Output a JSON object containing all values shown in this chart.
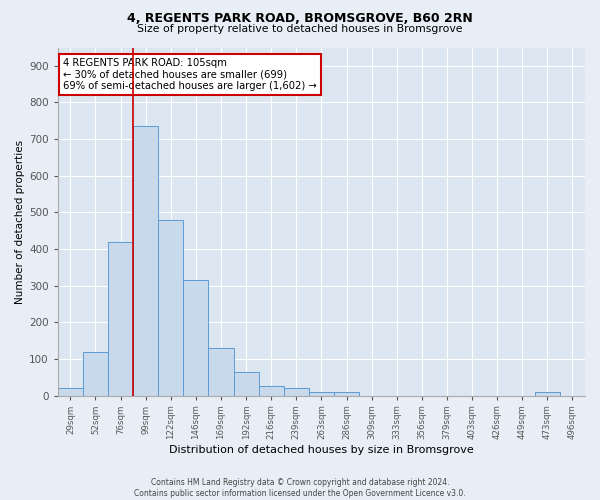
{
  "title1": "4, REGENTS PARK ROAD, BROMSGROVE, B60 2RN",
  "title2": "Size of property relative to detached houses in Bromsgrove",
  "xlabel": "Distribution of detached houses by size in Bromsgrove",
  "ylabel": "Number of detached properties",
  "bar_labels": [
    "29sqm",
    "52sqm",
    "76sqm",
    "99sqm",
    "122sqm",
    "146sqm",
    "169sqm",
    "192sqm",
    "216sqm",
    "239sqm",
    "263sqm",
    "286sqm",
    "309sqm",
    "333sqm",
    "356sqm",
    "379sqm",
    "403sqm",
    "426sqm",
    "449sqm",
    "473sqm",
    "496sqm"
  ],
  "bar_values": [
    20,
    120,
    420,
    735,
    480,
    315,
    130,
    65,
    25,
    20,
    10,
    10,
    0,
    0,
    0,
    0,
    0,
    0,
    0,
    10,
    0
  ],
  "bar_color": "#c8d9ec",
  "bar_edge_color": "#5b9bd5",
  "marker_bin_index": 3,
  "marker_color": "#cc0000",
  "annotation_text": "4 REGENTS PARK ROAD: 105sqm\n← 30% of detached houses are smaller (699)\n69% of semi-detached houses are larger (1,602) →",
  "annotation_box_color": "#cc0000",
  "ylim": [
    0,
    950
  ],
  "yticks": [
    0,
    100,
    200,
    300,
    400,
    500,
    600,
    700,
    800,
    900
  ],
  "bg_color": "#e8eef5",
  "plot_bg_color": "#dce6f1",
  "footer1": "Contains HM Land Registry data © Crown copyright and database right 2024.",
  "footer2": "Contains public sector information licensed under the Open Government Licence v3.0."
}
